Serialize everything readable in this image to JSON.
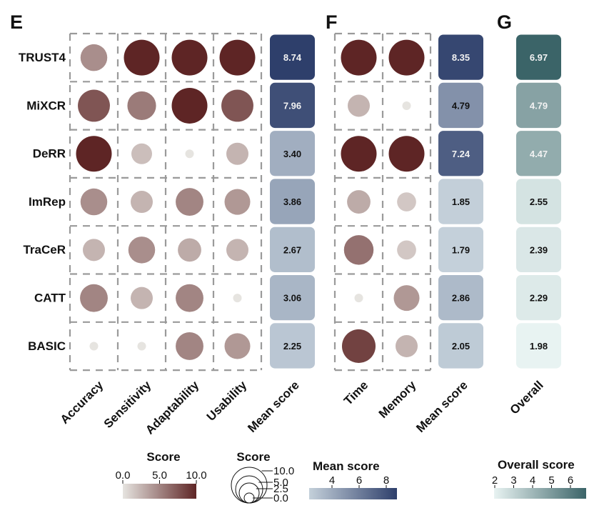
{
  "chart_data": {
    "type": "heatmap",
    "panels": {
      "E": {
        "letter": "E",
        "rows": [
          "TRUST4",
          "MiXCR",
          "DeRR",
          "ImRep",
          "TraCeR",
          "CATT",
          "BASIC"
        ],
        "columns": [
          "Accuracy",
          "Sensitivity",
          "Adaptability",
          "Usability"
        ],
        "scores": [
          [
            4.5,
            10,
            10,
            10
          ],
          [
            7.5,
            5.5,
            10,
            7.5
          ],
          [
            10,
            2,
            0,
            2.5
          ],
          [
            4.5,
            2.5,
            5,
            4
          ],
          [
            2.5,
            4.5,
            3,
            2.5
          ],
          [
            5,
            2.5,
            5,
            0
          ],
          [
            0,
            0,
            5,
            4
          ]
        ],
        "mean_label": "Mean score",
        "mean_scores": [
          "8.74",
          "7.96",
          "3.40",
          "3.86",
          "2.67",
          "3.06",
          "2.25"
        ]
      },
      "F": {
        "letter": "F",
        "columns": [
          "Time",
          "Memory"
        ],
        "scores": [
          [
            10,
            10
          ],
          [
            2.5,
            0
          ],
          [
            10,
            10
          ],
          [
            3,
            1.5
          ],
          [
            6,
            1.5
          ],
          [
            0,
            4
          ],
          [
            8.5,
            2.5
          ]
        ],
        "mean_label": "Mean score",
        "mean_scores": [
          "8.35",
          "4.79",
          "7.24",
          "1.85",
          "1.79",
          "2.86",
          "2.05"
        ]
      },
      "G": {
        "letter": "G",
        "column": "Overall",
        "overall_scores": [
          "6.97",
          "4.79",
          "4.47",
          "2.55",
          "2.39",
          "2.29",
          "1.98"
        ]
      }
    },
    "legends": {
      "score_color": {
        "title": "Score",
        "ticks": [
          "0.0",
          "5.0",
          "10.0"
        ],
        "range": [
          0,
          10
        ],
        "low": "#e6e4e0",
        "high": "#5e2525"
      },
      "score_size": {
        "title": "Score",
        "ticks": [
          "10.0",
          "5.0",
          "2.5",
          "0.0"
        ]
      },
      "mean_score": {
        "title": "Mean score",
        "ticks": [
          "4",
          "6",
          "8"
        ],
        "range": [
          1.79,
          8.74
        ],
        "low": "#c4d0da",
        "high": "#2e3f6b"
      },
      "overall_score": {
        "title": "Overall score",
        "ticks": [
          "2",
          "3",
          "4",
          "5",
          "6"
        ],
        "range": [
          1.98,
          6.97
        ],
        "low": "#e8f3f2",
        "high": "#3b6468"
      }
    }
  }
}
